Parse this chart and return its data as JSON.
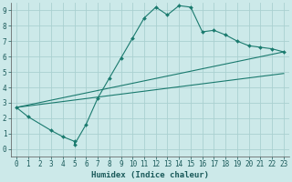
{
  "xlabel": "Humidex (Indice chaleur)",
  "xlim": [
    -0.5,
    23.5
  ],
  "ylim": [
    -0.5,
    9.5
  ],
  "xticks": [
    0,
    1,
    2,
    3,
    4,
    5,
    6,
    7,
    8,
    9,
    10,
    11,
    12,
    13,
    14,
    15,
    16,
    17,
    18,
    19,
    20,
    21,
    22,
    23
  ],
  "yticks": [
    0,
    1,
    2,
    3,
    4,
    5,
    6,
    7,
    8,
    9
  ],
  "background_color": "#cce9e9",
  "grid_color": "#aad0d0",
  "line_color": "#1a7a6e",
  "line1_x": [
    0,
    1,
    3,
    4,
    5,
    5,
    6,
    7,
    8,
    9,
    10,
    11,
    12,
    13,
    14,
    15,
    16,
    17,
    18,
    19,
    20,
    21,
    22,
    23
  ],
  "line1_y": [
    2.7,
    2.1,
    1.2,
    0.8,
    0.5,
    0.3,
    1.6,
    3.3,
    4.6,
    5.9,
    7.2,
    8.5,
    9.2,
    8.7,
    9.3,
    9.2,
    7.6,
    7.7,
    7.4,
    7.0,
    6.7,
    6.6,
    6.5,
    6.3
  ],
  "line2_x": [
    0,
    23
  ],
  "line2_y": [
    2.7,
    6.3
  ],
  "line3_x": [
    0,
    23
  ],
  "line3_y": [
    2.7,
    4.9
  ]
}
